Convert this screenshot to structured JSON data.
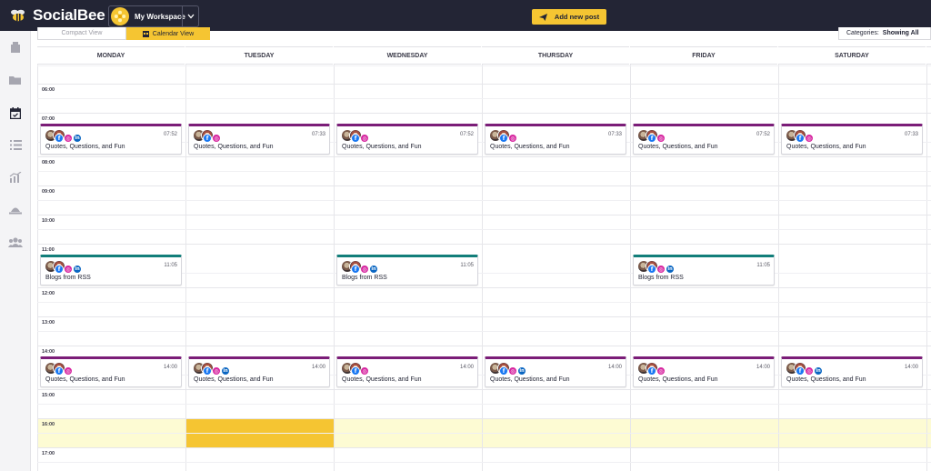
{
  "app": {
    "name": "SocialBee"
  },
  "topbar": {
    "workspace": "My Workspace",
    "add_post": "Add new post"
  },
  "viewbar": {
    "compact_view": "Compact View",
    "calendar_view": "Calendar View",
    "categories_label": "Categories:",
    "categories_value": "Showing All"
  },
  "nav": {
    "icons": [
      "content-icon",
      "folder-icon",
      "calendar-icon",
      "list-icon",
      "analytics-icon",
      "engage-icon",
      "team-icon"
    ]
  },
  "calendar": {
    "days": [
      "MONDAY",
      "TUESDAY",
      "WEDNESDAY",
      "THURSDAY",
      "FRIDAY",
      "SATURDAY"
    ],
    "hours": [
      "06:00",
      "07:00",
      "08:00",
      "09:00",
      "10:00",
      "11:00",
      "12:00",
      "13:00",
      "14:00",
      "15:00",
      "16:00",
      "17:00"
    ],
    "highlight": {
      "hour": "16:00",
      "selected_day": "TUESDAY"
    },
    "posts": [
      {
        "day": "MONDAY",
        "time": "07:52",
        "title": "Quotes, Questions, and Fun",
        "category_color": "#7b1d78",
        "networks": [
          "facebook",
          "instagram",
          "linkedin"
        ]
      },
      {
        "day": "TUESDAY",
        "time": "07:33",
        "title": "Quotes, Questions, and Fun",
        "category_color": "#7b1d78",
        "networks": [
          "facebook",
          "instagram"
        ]
      },
      {
        "day": "WEDNESDAY",
        "time": "07:52",
        "title": "Quotes, Questions, and Fun",
        "category_color": "#7b1d78",
        "networks": [
          "facebook",
          "instagram"
        ]
      },
      {
        "day": "THURSDAY",
        "time": "07:33",
        "title": "Quotes, Questions, and Fun",
        "category_color": "#7b1d78",
        "networks": [
          "facebook",
          "instagram"
        ]
      },
      {
        "day": "FRIDAY",
        "time": "07:52",
        "title": "Quotes, Questions, and Fun",
        "category_color": "#7b1d78",
        "networks": [
          "facebook",
          "instagram"
        ]
      },
      {
        "day": "SATURDAY",
        "time": "07:33",
        "title": "Quotes, Questions, and Fun",
        "category_color": "#7b1d78",
        "networks": [
          "facebook",
          "instagram"
        ]
      },
      {
        "day": "MONDAY",
        "time": "11:05",
        "title": "Blogs from RSS",
        "category_color": "#127e7a",
        "networks": [
          "facebook",
          "instagram",
          "linkedin"
        ]
      },
      {
        "day": "WEDNESDAY",
        "time": "11:05",
        "title": "Blogs from RSS",
        "category_color": "#127e7a",
        "networks": [
          "facebook",
          "instagram",
          "linkedin"
        ]
      },
      {
        "day": "FRIDAY",
        "time": "11:05",
        "title": "Blogs from RSS",
        "category_color": "#127e7a",
        "networks": [
          "facebook",
          "instagram",
          "linkedin"
        ]
      },
      {
        "day": "MONDAY",
        "time": "14:00",
        "title": "Quotes, Questions, and Fun",
        "category_color": "#7b1d78",
        "networks": [
          "facebook",
          "instagram"
        ]
      },
      {
        "day": "TUESDAY",
        "time": "14:00",
        "title": "Quotes, Questions, and Fun",
        "category_color": "#7b1d78",
        "networks": [
          "facebook",
          "instagram",
          "linkedin"
        ]
      },
      {
        "day": "WEDNESDAY",
        "time": "14:00",
        "title": "Quotes, Questions, and Fun",
        "category_color": "#7b1d78",
        "networks": [
          "facebook",
          "instagram"
        ]
      },
      {
        "day": "THURSDAY",
        "time": "14:00",
        "title": "Quotes, Questions, and Fun",
        "category_color": "#7b1d78",
        "networks": [
          "facebook",
          "instagram",
          "linkedin"
        ]
      },
      {
        "day": "FRIDAY",
        "time": "14:00",
        "title": "Quotes, Questions, and Fun",
        "category_color": "#7b1d78",
        "networks": [
          "facebook",
          "instagram"
        ]
      },
      {
        "day": "SATURDAY",
        "time": "14:00",
        "title": "Quotes, Questions, and Fun",
        "category_color": "#7b1d78",
        "networks": [
          "facebook",
          "instagram",
          "linkedin"
        ]
      }
    ]
  },
  "colors": {
    "topbar": "#232535",
    "accent": "#f5c532",
    "quotes": "#7b1d78",
    "rss": "#127e7a",
    "highlight_row": "#fdfbd3"
  }
}
